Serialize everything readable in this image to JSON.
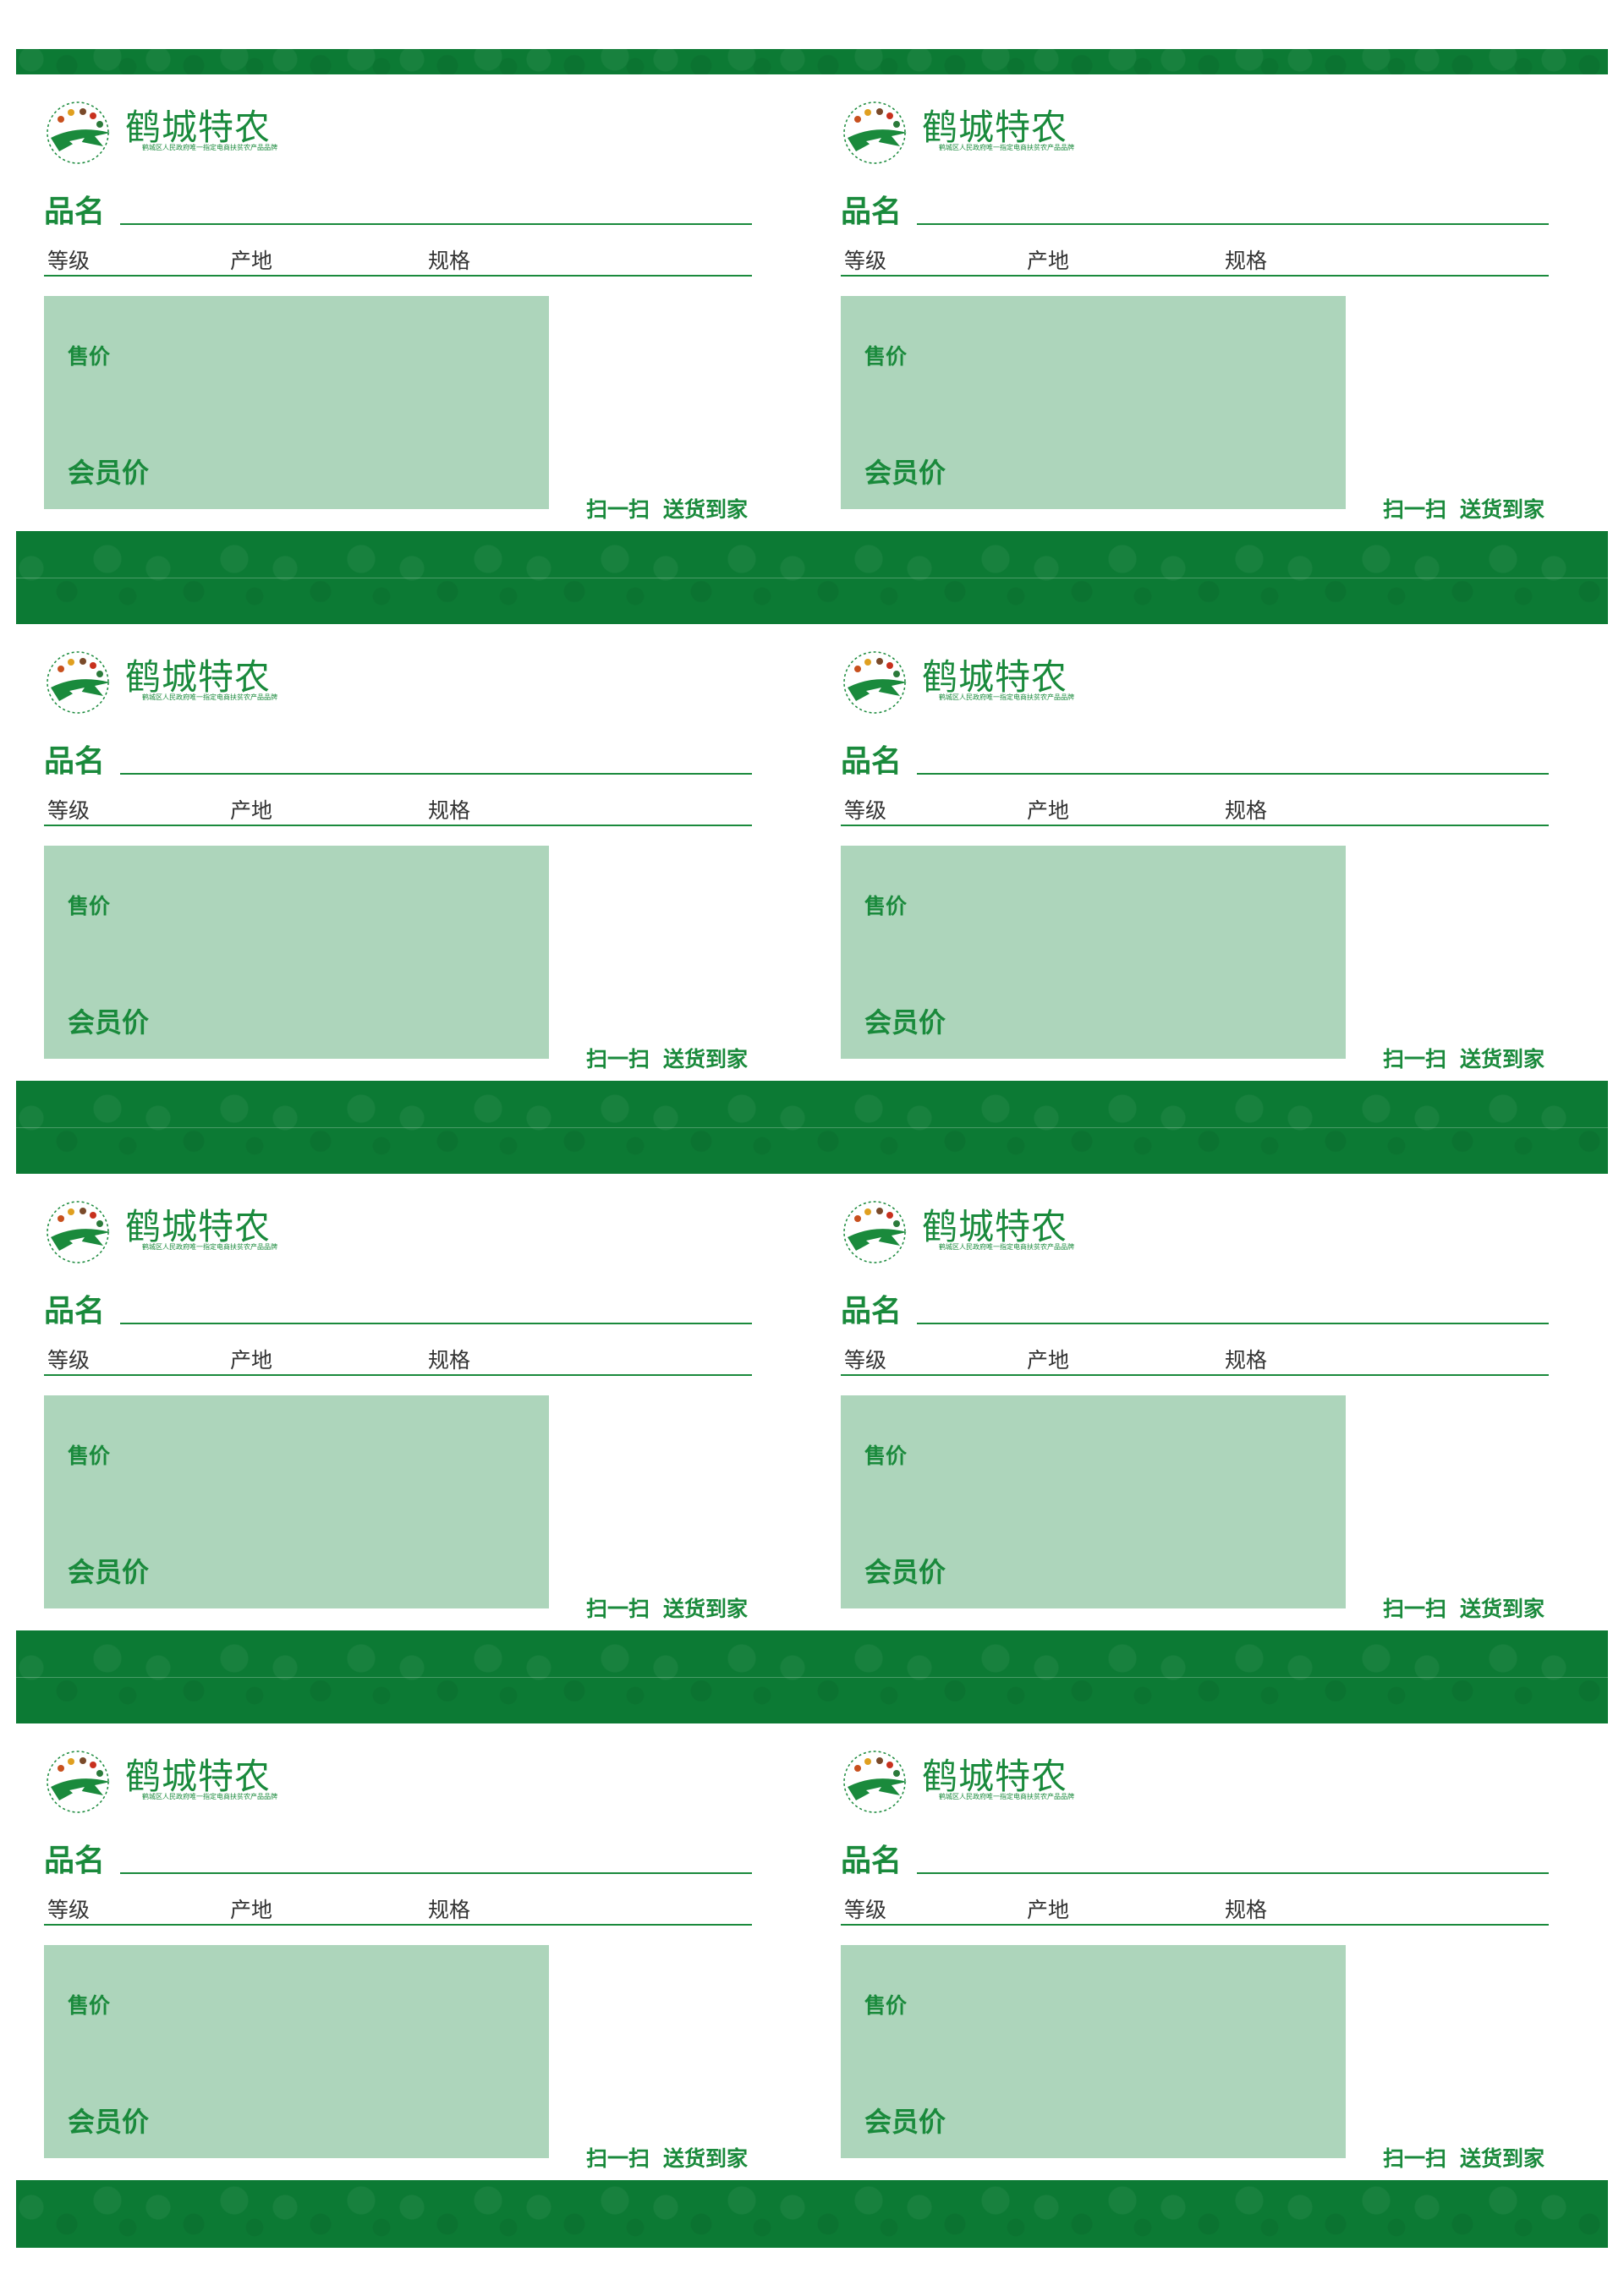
{
  "brand": {
    "name": "鹤城特农",
    "slogan": "鹤城区人民政府唯一指定电商扶贫农产品品牌"
  },
  "fields": {
    "product_name": "品名",
    "grade": "等级",
    "origin": "产地",
    "spec": "规格",
    "price": "售价",
    "member_price": "会员价",
    "scan": "扫一扫",
    "delivery": "送货到家"
  },
  "colors": {
    "brand_green": "#1a8a3c",
    "band_green": "#0c7a34",
    "price_box": "#add5bb"
  },
  "icons": {
    "logo": "brand-emblem-icon"
  }
}
